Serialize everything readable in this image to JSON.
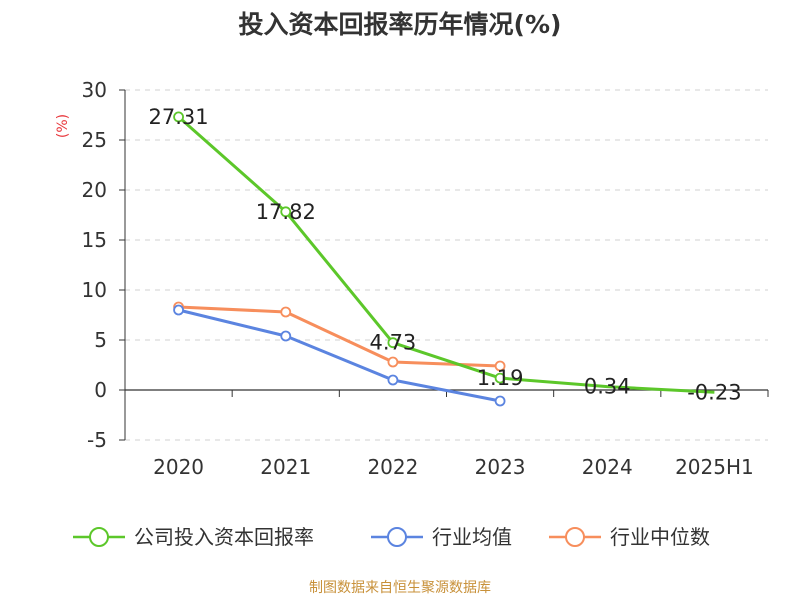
{
  "chart_data": {
    "type": "line",
    "title": "投入资本回报率历年情况(%)",
    "ylabel": "(%)",
    "categories": [
      "2020",
      "2021",
      "2022",
      "2023",
      "2024",
      "2025H1"
    ],
    "yticks": [
      "30",
      "25",
      "20",
      "15",
      "10",
      "5",
      "0",
      "-5"
    ],
    "ylim": [
      -5,
      30
    ],
    "grid": true,
    "legend_position": "bottom",
    "series": [
      {
        "name": "公司投入资本回报率",
        "color": "#5cc72a",
        "values": [
          27.31,
          17.82,
          4.73,
          1.19,
          0.34,
          -0.23
        ],
        "labels": [
          "27.31",
          "17.82",
          "4.73",
          "1.19",
          "0.34",
          "-0.23"
        ]
      },
      {
        "name": "行业均值",
        "color": "#5b84e0",
        "values": [
          8.0,
          5.4,
          1.0,
          -1.1,
          null,
          null
        ]
      },
      {
        "name": "行业中位数",
        "color": "#f78e5c",
        "values": [
          8.3,
          7.8,
          2.8,
          2.4,
          null,
          null
        ]
      }
    ],
    "source": "制图数据来自恒生聚源数据库"
  }
}
